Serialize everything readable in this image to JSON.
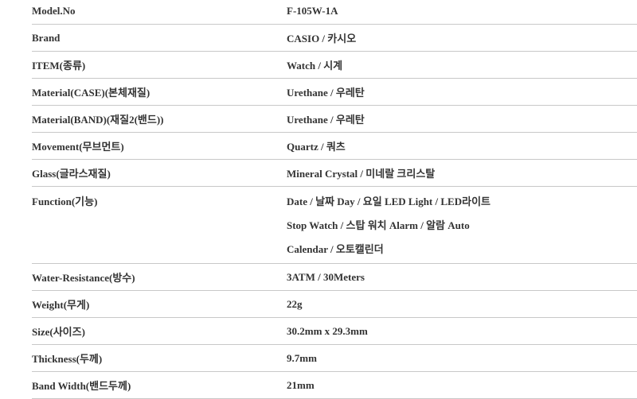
{
  "specs": [
    {
      "label": "Model.No",
      "value": "F-105W-1A"
    },
    {
      "label": "Brand",
      "value": "CASIO / 카시오"
    },
    {
      "label": "ITEM(종류)",
      "value": "Watch / 시계"
    },
    {
      "label": "Material(CASE)(본체재질)",
      "value": "Urethane / 우레탄"
    },
    {
      "label": "Material(BAND)(재질2(밴드))",
      "value": "Urethane / 우레탄"
    },
    {
      "label": "Movement(무브먼트)",
      "value": "Quartz / 쿼츠"
    },
    {
      "label": "Glass(글라스재질)",
      "value": "Mineral Crystal / 미네랄 크리스탈"
    },
    {
      "label": "Function(기능)",
      "lines": [
        "Date / 날짜 Day / 요일 LED Light / LED라이트",
        "Stop Watch / 스탑 워치 Alarm / 알람 Auto",
        "Calendar / 오토캘린더"
      ]
    },
    {
      "label": "Water-Resistance(방수)",
      "value": "3ATM / 30Meters"
    },
    {
      "label": "Weight(무게)",
      "value": "22g"
    },
    {
      "label": "Size(사이즈)",
      "value": "30.2mm x 29.3mm"
    },
    {
      "label": "Thickness(두께)",
      "value": "9.7mm"
    },
    {
      "label": "Band Width(밴드두께)",
      "value": "21mm"
    }
  ]
}
